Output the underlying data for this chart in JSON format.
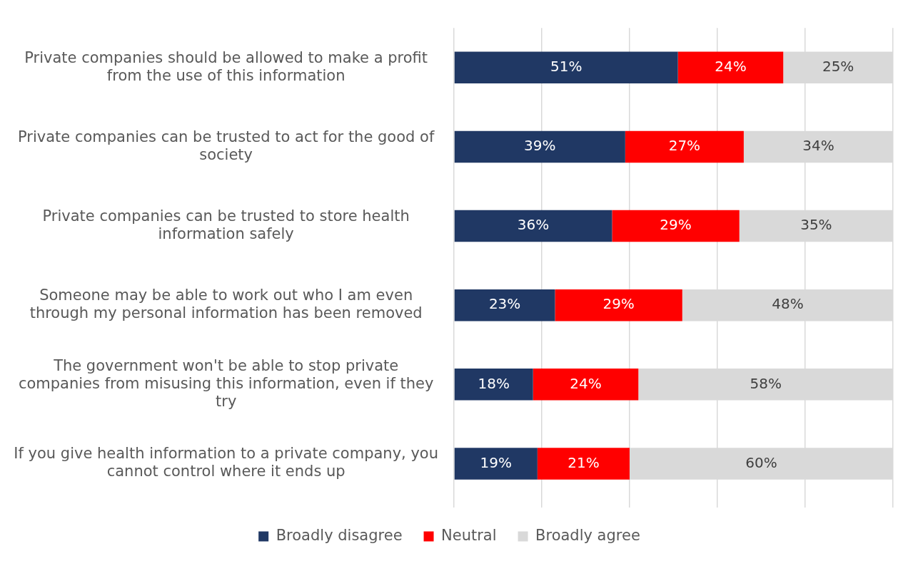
{
  "chart_data": {
    "type": "bar",
    "orientation": "horizontal",
    "stacked": true,
    "categories": [
      "Private companies should be allowed to make a profit from the use of this information",
      "Private companies can be trusted to act for the good of society",
      "Private companies can be trusted to store health information safely",
      "Someone may be able to work out who I am even through my personal information has been removed",
      "The government won't be able to stop private companies from misusing this information, even if they try",
      "If you give health information to a private company, you cannot control where it ends up"
    ],
    "series": [
      {
        "name": "Broadly disagree",
        "color": "#203864",
        "values": [
          51,
          39,
          36,
          23,
          18,
          19
        ],
        "value_labels": [
          "51%",
          "39%",
          "36%",
          "23%",
          "18%",
          "19%"
        ]
      },
      {
        "name": "Neutral",
        "color": "#ff0000",
        "values": [
          24,
          27,
          29,
          29,
          24,
          21
        ],
        "value_labels": [
          "24%",
          "27%",
          "29%",
          "29%",
          "24%",
          "21%"
        ]
      },
      {
        "name": "Broadly agree",
        "color": "#d9d9d9",
        "values": [
          25,
          34,
          35,
          48,
          58,
          60
        ],
        "value_labels": [
          "25%",
          "34%",
          "35%",
          "48%",
          "58%",
          "60%"
        ]
      }
    ],
    "xlim": [
      0,
      100
    ],
    "xticks": [
      {
        "value": 0,
        "label": null
      },
      {
        "value": 20,
        "label": null
      },
      {
        "value": 40,
        "label": null
      },
      {
        "value": 60,
        "label": null
      },
      {
        "value": 80,
        "label": null
      },
      {
        "value": 100,
        "label": null
      }
    ],
    "grid": "x",
    "legend": "bottom",
    "tick_labels": "y"
  }
}
